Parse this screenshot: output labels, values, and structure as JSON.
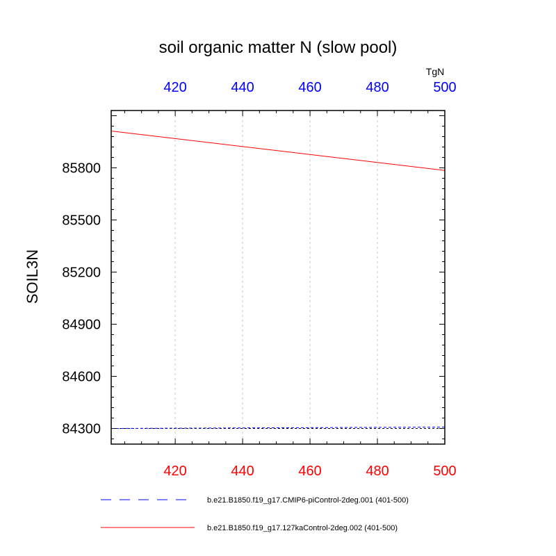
{
  "chart_data": {
    "type": "line",
    "title": "soil organic matter N (slow pool)",
    "ylabel": "SOIL3N",
    "units": "TgN",
    "xlim": [
      401,
      500
    ],
    "ylim": [
      84210,
      86130
    ],
    "x_ticks": [
      420,
      440,
      460,
      480,
      500
    ],
    "y_ticks": [
      84300,
      84600,
      84900,
      85200,
      85500,
      85800
    ],
    "grid": {
      "vertical": true,
      "horizontal": false
    },
    "legend_position": "bottom",
    "colors": {
      "bottom_axis_labels": "#ff0000",
      "top_axis_labels": "#0000ff",
      "grid": "#c8c8c8"
    },
    "series": [
      {
        "name": "b.e21.B1850.f19_g17.CMIP6-piControl-2deg.001 (401-500)",
        "color": "#0000ff",
        "dash": "dashed",
        "x": [
          401,
          500
        ],
        "y": [
          84300,
          84308
        ]
      },
      {
        "name": "b.e21.B1850.f19_g17.127kaControl-2deg.002 (401-500)",
        "color": "#ff0000",
        "dash": "solid",
        "x": [
          401,
          500
        ],
        "y": [
          86012,
          85785
        ]
      }
    ],
    "reference_line": {
      "y": 84300,
      "color": "#000000",
      "dash": "dashed"
    }
  }
}
